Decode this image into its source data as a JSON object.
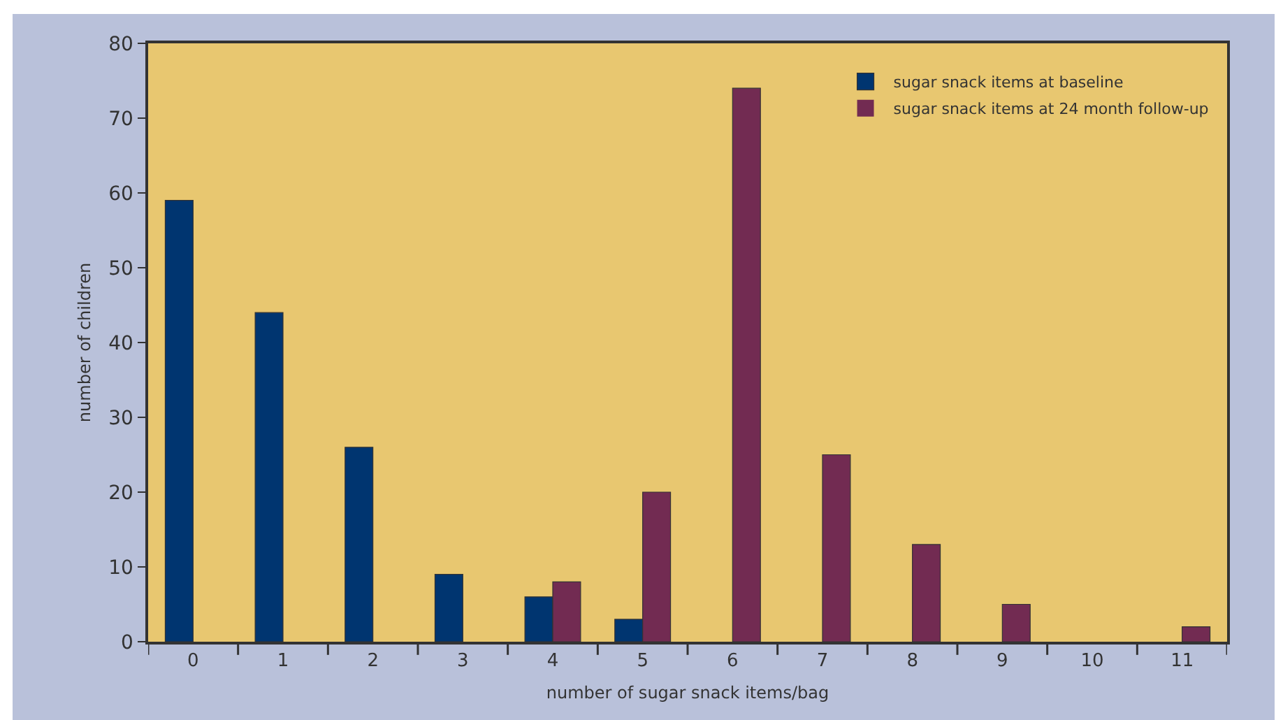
{
  "chart_data": {
    "type": "bar",
    "xlabel": "number of sugar snack items/bag",
    "ylabel": "number of children",
    "categories": [
      "0",
      "1",
      "2",
      "3",
      "4",
      "5",
      "6",
      "7",
      "8",
      "9",
      "10",
      "11"
    ],
    "series": [
      {
        "name": "sugar snack items at baseline",
        "color": "#003570",
        "values": [
          59,
          44,
          26,
          9,
          6,
          3,
          0,
          0,
          0,
          0,
          0,
          0
        ]
      },
      {
        "name": "sugar snack items at 24 month follow-up",
        "color": "#722b52",
        "values": [
          0,
          0,
          0,
          0,
          8,
          20,
          74,
          25,
          13,
          5,
          0,
          2
        ]
      }
    ],
    "ylim": [
      0,
      80
    ],
    "yticks": [
      0,
      10,
      20,
      30,
      40,
      50,
      60,
      70,
      80
    ],
    "grid": false,
    "legend": "top right"
  }
}
